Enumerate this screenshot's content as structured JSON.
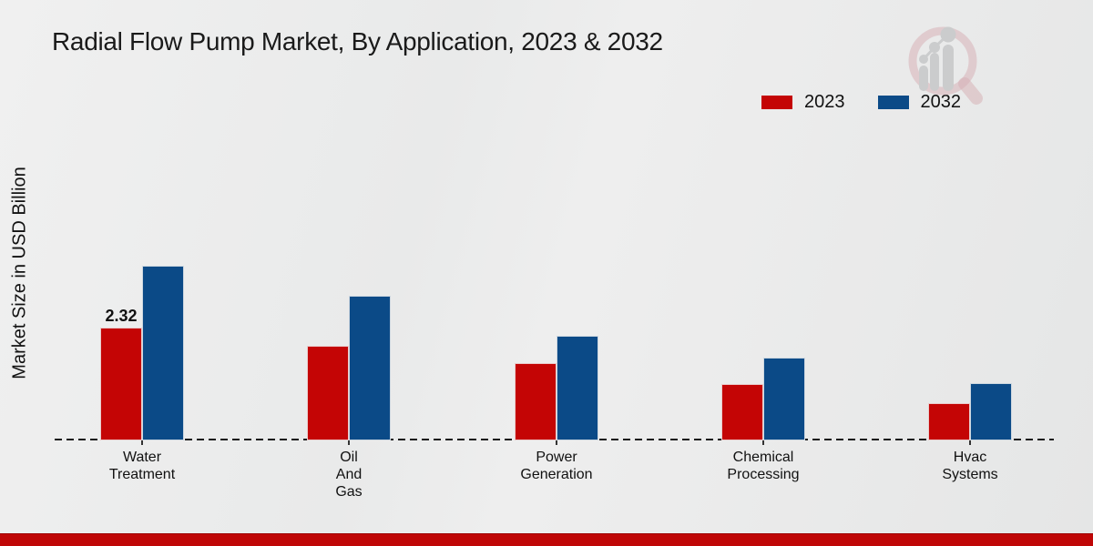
{
  "title": "Radial Flow Pump Market, By Application, 2023 & 2032",
  "ylabel": "Market Size in USD Billion",
  "legend": {
    "items": [
      {
        "label": "2023",
        "color": "#c40505"
      },
      {
        "label": "2032",
        "color": "#0b4a87"
      }
    ]
  },
  "chart_data": {
    "type": "bar",
    "title": "Radial Flow Pump Market, By Application, 2023 & 2032",
    "ylabel": "Market Size in USD Billion",
    "categories": [
      "Water Treatment",
      "Oil And Gas",
      "Power Generation",
      "Chemical Processing",
      "Hvac Systems"
    ],
    "category_label_lines": [
      [
        "Water",
        "Treatment"
      ],
      [
        "Oil",
        "And",
        "Gas"
      ],
      [
        "Power",
        "Generation"
      ],
      [
        "Chemical",
        "Processing"
      ],
      [
        "Hvac",
        "Systems"
      ]
    ],
    "series": [
      {
        "name": "2023",
        "color": "#c40505",
        "values": [
          2.32,
          1.94,
          1.58,
          1.15,
          0.77
        ]
      },
      {
        "name": "2032",
        "color": "#0b4a87",
        "values": [
          3.58,
          2.98,
          2.15,
          1.7,
          1.17
        ]
      }
    ],
    "annotations": [
      {
        "series_index": 0,
        "category_index": 0,
        "text": "2.32"
      }
    ],
    "baseline_style": "dashed",
    "grid": false,
    "legend_position": "top-right",
    "ylim": [
      0,
      4
    ]
  },
  "watermark": {
    "name": "magnifier-growth-chart-logo"
  },
  "footer": {
    "accent_color": "#bf0606"
  },
  "colors": {
    "background": "#e9eaea",
    "text": "#1a1a1a",
    "baseline": "#1a1a1a"
  }
}
